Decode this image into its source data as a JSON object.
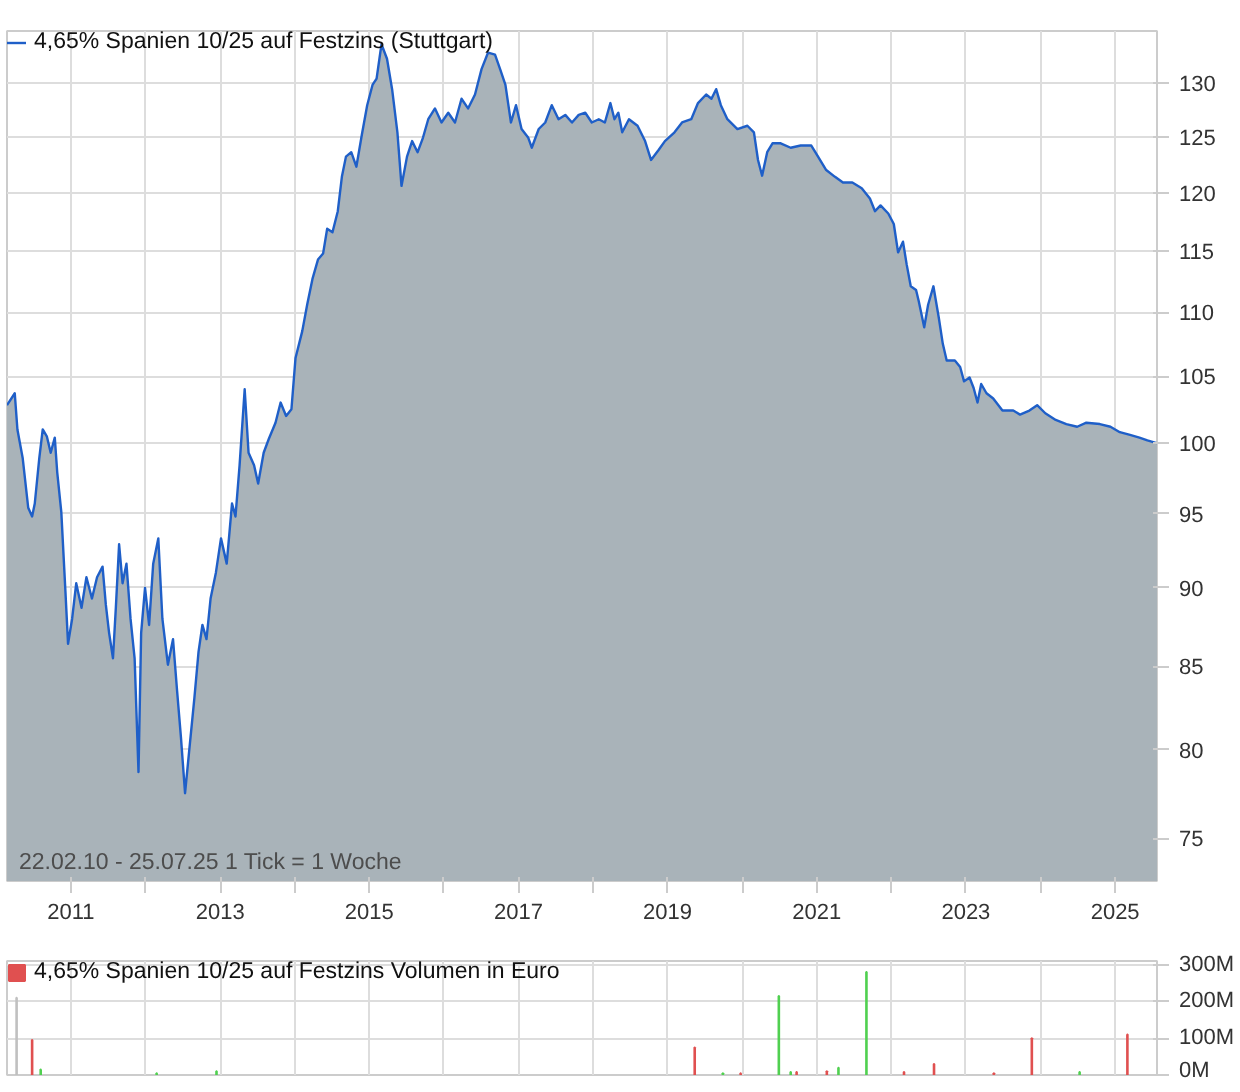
{
  "chart_data": [
    {
      "type": "area",
      "log": true,
      "grid": true,
      "legend": "top left",
      "annotations": [
        "22.02.10 - 25.07.25   1 Tick = 1 Woche"
      ],
      "xlim": [
        "2010-02-22",
        "2025-07-25"
      ],
      "ylim": [
        72.7,
        135
      ],
      "xticks": [
        {
          "value": "2011-01-01",
          "label": "2011"
        },
        {
          "value": "2012-01-01",
          "label": null
        },
        {
          "value": "2013-01-01",
          "label": "2013"
        },
        {
          "value": "2014-01-01",
          "label": null
        },
        {
          "value": "2015-01-01",
          "label": "2015"
        },
        {
          "value": "2016-01-01",
          "label": null
        },
        {
          "value": "2017-01-01",
          "label": "2017"
        },
        {
          "value": "2018-01-01",
          "label": null
        },
        {
          "value": "2019-01-01",
          "label": "2019"
        },
        {
          "value": "2020-01-01",
          "label": null
        },
        {
          "value": "2021-01-01",
          "label": "2021"
        },
        {
          "value": "2022-01-01",
          "label": null
        },
        {
          "value": "2023-01-01",
          "label": "2023"
        },
        {
          "value": "2024-01-01",
          "label": null
        },
        {
          "value": "2025-01-01",
          "label": "2025"
        }
      ],
      "yticks": [
        75,
        80,
        85,
        90,
        95,
        100,
        105,
        110,
        115,
        120,
        125,
        130
      ],
      "series": [
        {
          "name": "4,65% Spanien 10/25 auf Festzins (Stuttgart)",
          "color": "#1f5fc8",
          "x": [
            "2010-02-22",
            "2010-04-01",
            "2010-04-14",
            "2010-05-10",
            "2010-06-06",
            "2010-06-25",
            "2010-07-08",
            "2010-07-30",
            "2010-08-16",
            "2010-09-05",
            "2010-09-24",
            "2010-10-14",
            "2010-10-26",
            "2010-11-15",
            "2010-12-05",
            "2010-12-18",
            "2011-01-07",
            "2011-01-27",
            "2011-02-22",
            "2011-03-18",
            "2011-04-14",
            "2011-05-09",
            "2011-06-05",
            "2011-06-21",
            "2011-07-07",
            "2011-07-26",
            "2011-08-09",
            "2011-08-25",
            "2011-09-11",
            "2011-09-30",
            "2011-10-20",
            "2011-11-09",
            "2011-11-28",
            "2011-12-11",
            "2011-12-30",
            "2012-01-19",
            "2012-02-08",
            "2012-03-04",
            "2012-03-24",
            "2012-04-20",
            "2012-05-15",
            "2012-06-04",
            "2012-06-23",
            "2012-07-13",
            "2012-08-02",
            "2012-08-28",
            "2012-09-17",
            "2012-10-06",
            "2012-10-26",
            "2012-11-15",
            "2012-12-11",
            "2013-01-05",
            "2013-02-02",
            "2013-02-28",
            "2013-03-17",
            "2013-04-06",
            "2013-05-01",
            "2013-05-20",
            "2013-06-16",
            "2013-07-06",
            "2013-08-02",
            "2013-08-27",
            "2013-09-29",
            "2013-10-24",
            "2013-11-20",
            "2013-12-16",
            "2014-01-05",
            "2014-02-07",
            "2014-03-03",
            "2014-03-29",
            "2014-04-25",
            "2014-05-20",
            "2014-06-09",
            "2014-07-05",
            "2014-07-31",
            "2014-08-20",
            "2014-09-09",
            "2014-10-05",
            "2014-10-30",
            "2014-11-26",
            "2014-12-22",
            "2015-01-17",
            "2015-02-06",
            "2015-03-02",
            "2015-03-29",
            "2015-04-23",
            "2015-05-19",
            "2015-06-08",
            "2015-07-05",
            "2015-07-30",
            "2015-08-26",
            "2015-09-21",
            "2015-10-17",
            "2015-11-19",
            "2015-12-21",
            "2016-01-23",
            "2016-02-25",
            "2016-03-28",
            "2016-04-29",
            "2016-06-02",
            "2016-07-04",
            "2016-08-05",
            "2016-09-08",
            "2016-10-03",
            "2016-10-29",
            "2016-11-25",
            "2016-12-20",
            "2017-01-16",
            "2017-02-18",
            "2017-03-07",
            "2017-04-10",
            "2017-05-12",
            "2017-06-13",
            "2017-07-16",
            "2017-08-18",
            "2017-09-20",
            "2017-10-23",
            "2017-11-24",
            "2017-12-26",
            "2018-01-29",
            "2018-02-28",
            "2018-03-27",
            "2018-04-16",
            "2018-05-05",
            "2018-05-24",
            "2018-06-26",
            "2018-08-07",
            "2018-09-13",
            "2018-10-12",
            "2018-11-18",
            "2018-12-19",
            "2019-02-04",
            "2019-03-13",
            "2019-04-27",
            "2019-05-30",
            "2019-07-09",
            "2019-08-04",
            "2019-08-27",
            "2019-09-19",
            "2019-10-21",
            "2019-12-09",
            "2020-01-27",
            "2020-02-28",
            "2020-03-19",
            "2020-04-08",
            "2020-05-03",
            "2020-05-29",
            "2020-07-08",
            "2020-08-26",
            "2020-10-14",
            "2020-12-05",
            "2021-01-07",
            "2021-02-16",
            "2021-03-31",
            "2021-05-09",
            "2021-06-24",
            "2021-08-09",
            "2021-09-18",
            "2021-10-13",
            "2021-11-09",
            "2021-12-17",
            "2022-01-13",
            "2022-02-03",
            "2022-02-27",
            "2022-03-17",
            "2022-04-06",
            "2022-05-02",
            "2022-05-15",
            "2022-06-11",
            "2022-06-30",
            "2022-07-26",
            "2022-08-21",
            "2022-09-10",
            "2022-09-29",
            "2022-11-08",
            "2022-12-04",
            "2022-12-23",
            "2023-01-19",
            "2023-02-08",
            "2023-02-27",
            "2023-03-17",
            "2023-04-12",
            "2023-05-15",
            "2023-06-29",
            "2023-08-21",
            "2023-09-23",
            "2023-11-08",
            "2023-12-16",
            "2024-01-25",
            "2024-03-16",
            "2024-05-07",
            "2024-06-29",
            "2024-08-13",
            "2024-10-18",
            "2024-12-09",
            "2025-01-24",
            "2025-03-15",
            "2025-04-30",
            "2025-06-08",
            "2025-07-25"
          ],
          "values": [
            102.8,
            103.7,
            101,
            98.9,
            95.4,
            94.8,
            95.7,
            98.9,
            101,
            100.5,
            99.3,
            100.4,
            97.9,
            95.1,
            89.8,
            86.4,
            88,
            90.3,
            88.7,
            90.7,
            89.3,
            90.7,
            91.4,
            88.9,
            87.1,
            85.5,
            88.7,
            92.9,
            90.3,
            91.6,
            88,
            85.5,
            78.7,
            87.1,
            90,
            87.6,
            91.6,
            93.3,
            88,
            85.1,
            86.7,
            83.5,
            80.7,
            77.5,
            79.9,
            83.1,
            85.9,
            87.6,
            86.7,
            89.3,
            91,
            93.3,
            91.6,
            95.7,
            94.8,
            98.4,
            104,
            99.3,
            98.4,
            97.1,
            99.3,
            100.3,
            101.5,
            103,
            102,
            102.5,
            106.4,
            108.5,
            110.6,
            112.7,
            114.3,
            114.8,
            116.9,
            116.6,
            118.4,
            121.4,
            123.2,
            123.6,
            122.3,
            125.2,
            127.9,
            129.8,
            130.4,
            133.7,
            132.3,
            129.4,
            125.4,
            120.6,
            123.2,
            124.6,
            123.6,
            124.9,
            126.6,
            127.6,
            126.3,
            127.2,
            126.3,
            128.5,
            127.6,
            128.9,
            131.3,
            132.9,
            132.7,
            131.3,
            129.8,
            126.3,
            127.9,
            125.7,
            124.9,
            124,
            125.7,
            126.3,
            127.9,
            126.6,
            127,
            126.3,
            127,
            127.2,
            126.3,
            126.6,
            126.3,
            128.1,
            126.6,
            127.2,
            125.4,
            126.6,
            126,
            124.6,
            122.9,
            123.8,
            124.6,
            125.4,
            126.3,
            126.6,
            128.1,
            128.9,
            128.5,
            129.4,
            127.9,
            126.6,
            125.7,
            126,
            125.4,
            122.9,
            121.5,
            123.6,
            124.4,
            124.4,
            124,
            124.2,
            124.2,
            123.2,
            122,
            121.4,
            120.9,
            120.9,
            120.4,
            119.5,
            118.4,
            118.9,
            118.2,
            117.3,
            114.9,
            115.8,
            113.9,
            112.1,
            111.8,
            110.9,
            108.8,
            110.6,
            112.1,
            109.6,
            107.5,
            106.2,
            106.2,
            105.7,
            104.6,
            104.9,
            104.1,
            103,
            104.4,
            103.7,
            103.3,
            102.4,
            102.4,
            102.1,
            102.4,
            102.8,
            102.2,
            101.7,
            101.4,
            101.2,
            101.5,
            101.4,
            101.2,
            100.8,
            100.6,
            100.4,
            100.2,
            100
          ]
        }
      ]
    },
    {
      "type": "bar",
      "grid": true,
      "legend": "top left",
      "tick_labels": "y",
      "xlim": [
        "2010-02-22",
        "2025-07-25"
      ],
      "ylim": [
        0,
        310
      ],
      "xticks": [
        {
          "value": "2011-01-01",
          "label": null
        },
        {
          "value": "2012-01-01",
          "label": null
        },
        {
          "value": "2013-01-01",
          "label": null
        },
        {
          "value": "2014-01-01",
          "label": null
        },
        {
          "value": "2015-01-01",
          "label": null
        },
        {
          "value": "2016-01-01",
          "label": null
        },
        {
          "value": "2017-01-01",
          "label": null
        },
        {
          "value": "2018-01-01",
          "label": null
        },
        {
          "value": "2019-01-01",
          "label": null
        },
        {
          "value": "2020-01-01",
          "label": null
        },
        {
          "value": "2021-01-01",
          "label": null
        },
        {
          "value": "2022-01-01",
          "label": null
        },
        {
          "value": "2023-01-01",
          "label": null
        },
        {
          "value": "2024-01-01",
          "label": null
        },
        {
          "value": "2025-01-01",
          "label": null
        }
      ],
      "yticks": [
        {
          "value": 0,
          "label": "0M"
        },
        {
          "value": 100,
          "label": "100M"
        },
        {
          "value": 200,
          "label": "200M"
        },
        {
          "value": 300,
          "label": "300M"
        }
      ],
      "series": [
        {
          "name": "4,65% Spanien 10/25 auf Festzins Volumen in Euro",
          "color": "#e05050",
          "x": [
            "2010-04-10",
            "2010-06-25",
            "2010-08-06",
            "2012-02-25",
            "2012-12-14",
            "2019-05-14",
            "2019-09-29",
            "2019-12-25",
            "2020-06-29",
            "2020-08-26",
            "2020-09-24",
            "2021-02-19",
            "2021-04-17",
            "2021-09-01",
            "2022-03-04",
            "2022-07-29",
            "2023-05-18",
            "2023-11-20",
            "2024-07-11",
            "2025-03-02"
          ],
          "values": [
            210,
            95,
            15,
            5,
            10,
            75,
            5,
            5,
            215,
            8,
            8,
            10,
            20,
            280,
            8,
            30,
            5,
            100,
            8,
            110
          ],
          "colors": [
            "#c0c0c0",
            "#e05050",
            "#50d050",
            "#50d050",
            "#50d050",
            "#e05050",
            "#50d050",
            "#e05050",
            "#50d050",
            "#50d050",
            "#e05050",
            "#e05050",
            "#50d050",
            "#50d050",
            "#e05050",
            "#e05050",
            "#e05050",
            "#e05050",
            "#50d050",
            "#e05050"
          ]
        }
      ]
    }
  ]
}
